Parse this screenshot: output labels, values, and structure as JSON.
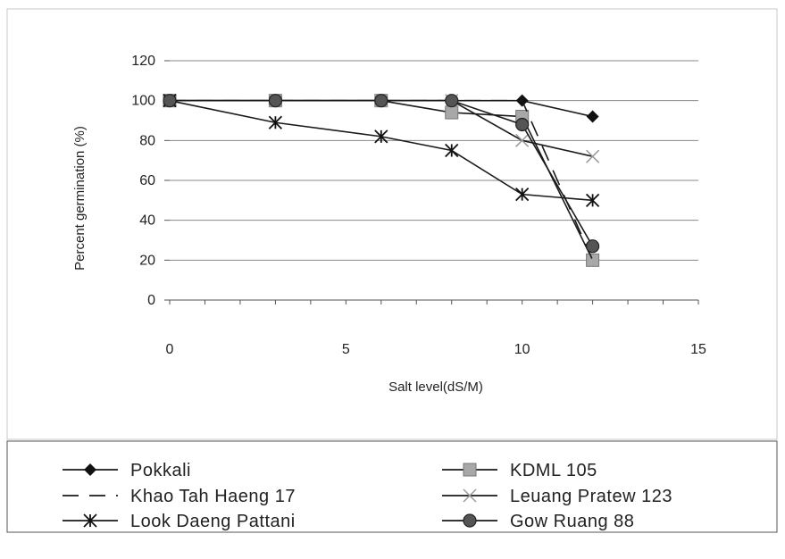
{
  "chart_data": {
    "type": "line",
    "title": "",
    "xlabel": "Salt level(dS/M)",
    "ylabel": "Percent germination (%)",
    "xlim": [
      0,
      15
    ],
    "ylim": [
      0,
      120
    ],
    "x_ticks": [
      "0",
      "5",
      "10",
      "15"
    ],
    "y_ticks": [
      "0",
      "20",
      "40",
      "60",
      "80",
      "100",
      "120"
    ],
    "grid": "horizontal",
    "legend_position": "bottom",
    "x": [
      0,
      3,
      6,
      8,
      10,
      12
    ],
    "series": [
      {
        "name": "Pokkali",
        "marker": "diamond",
        "values": [
          100,
          100,
          100,
          100,
          100,
          92
        ]
      },
      {
        "name": "KDML 105",
        "marker": "square",
        "values": [
          100,
          100,
          100,
          94,
          92,
          20
        ]
      },
      {
        "name": "Khao Tah Haeng 17",
        "marker": "none",
        "dashed": true,
        "values": [
          100,
          100,
          100,
          100,
          100,
          20
        ]
      },
      {
        "name": "Leuang Pratew 123",
        "marker": "x",
        "values": [
          100,
          100,
          100,
          100,
          80,
          72
        ]
      },
      {
        "name": "Look Daeng Pattani",
        "marker": "star",
        "values": [
          100,
          89,
          82,
          75,
          53,
          50
        ]
      },
      {
        "name": "Gow Ruang 88",
        "marker": "circle",
        "values": [
          100,
          100,
          100,
          100,
          88,
          27
        ]
      }
    ]
  }
}
